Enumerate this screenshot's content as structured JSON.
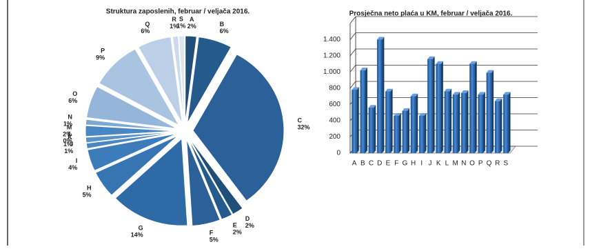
{
  "chart_data": [
    {
      "type": "pie",
      "title": "Struktura zaposlenih, februar / veljača 2016.",
      "categories": [
        "A",
        "B",
        "C",
        "D",
        "E",
        "F",
        "G",
        "H",
        "I",
        "J",
        "K",
        "L",
        "M",
        "N",
        "O",
        "P",
        "Q",
        "R",
        "S"
      ],
      "values": [
        2,
        6,
        32,
        2,
        2,
        5,
        14,
        5,
        4,
        1,
        1,
        0,
        2,
        1,
        6,
        9,
        6,
        1,
        1
      ],
      "value_labels": [
        "2%",
        "6%",
        "32%",
        "2%",
        "2%",
        "5%",
        "14%",
        "5%",
        "4%",
        "1%",
        "1%",
        "0%",
        "2%",
        "1%",
        "6%",
        "9%",
        "6%",
        "1%",
        "1%"
      ],
      "colors": [
        "#1f4e79",
        "#245a8c",
        "#2b6198",
        "#1f4e79",
        "#245a8c",
        "#2b6198",
        "#2e6aa6",
        "#3674b2",
        "#3d7cbb",
        "#4a86c2",
        "#5a91c8",
        "#6c9bcd",
        "#4a86c2",
        "#7ea8d4",
        "#95b6da",
        "#a9c3e0",
        "#bccfe6",
        "#ccdaeb",
        "#dbe5f0"
      ]
    },
    {
      "type": "bar",
      "title": "Prosječna neto plaća u KM, februar / veljača 2016.",
      "categories": [
        "A",
        "B",
        "C",
        "D",
        "E",
        "F",
        "G",
        "H",
        "I",
        "J",
        "K",
        "L",
        "M",
        "N",
        "O",
        "P",
        "Q",
        "R",
        "S"
      ],
      "values": [
        780,
        1020,
        560,
        1400,
        760,
        460,
        520,
        700,
        460,
        1160,
        1100,
        760,
        720,
        740,
        1100,
        720,
        990,
        640,
        720
      ],
      "color": "#2e6db4",
      "ylim": [
        0,
        1600
      ],
      "yticks": [
        0,
        200,
        400,
        600,
        800,
        {
          "value": 1000,
          "label": "1.000"
        },
        {
          "value": 1200,
          "label": "1.200"
        },
        {
          "value": 1400,
          "label": "1.400"
        }
      ],
      "grid": true
    }
  ]
}
